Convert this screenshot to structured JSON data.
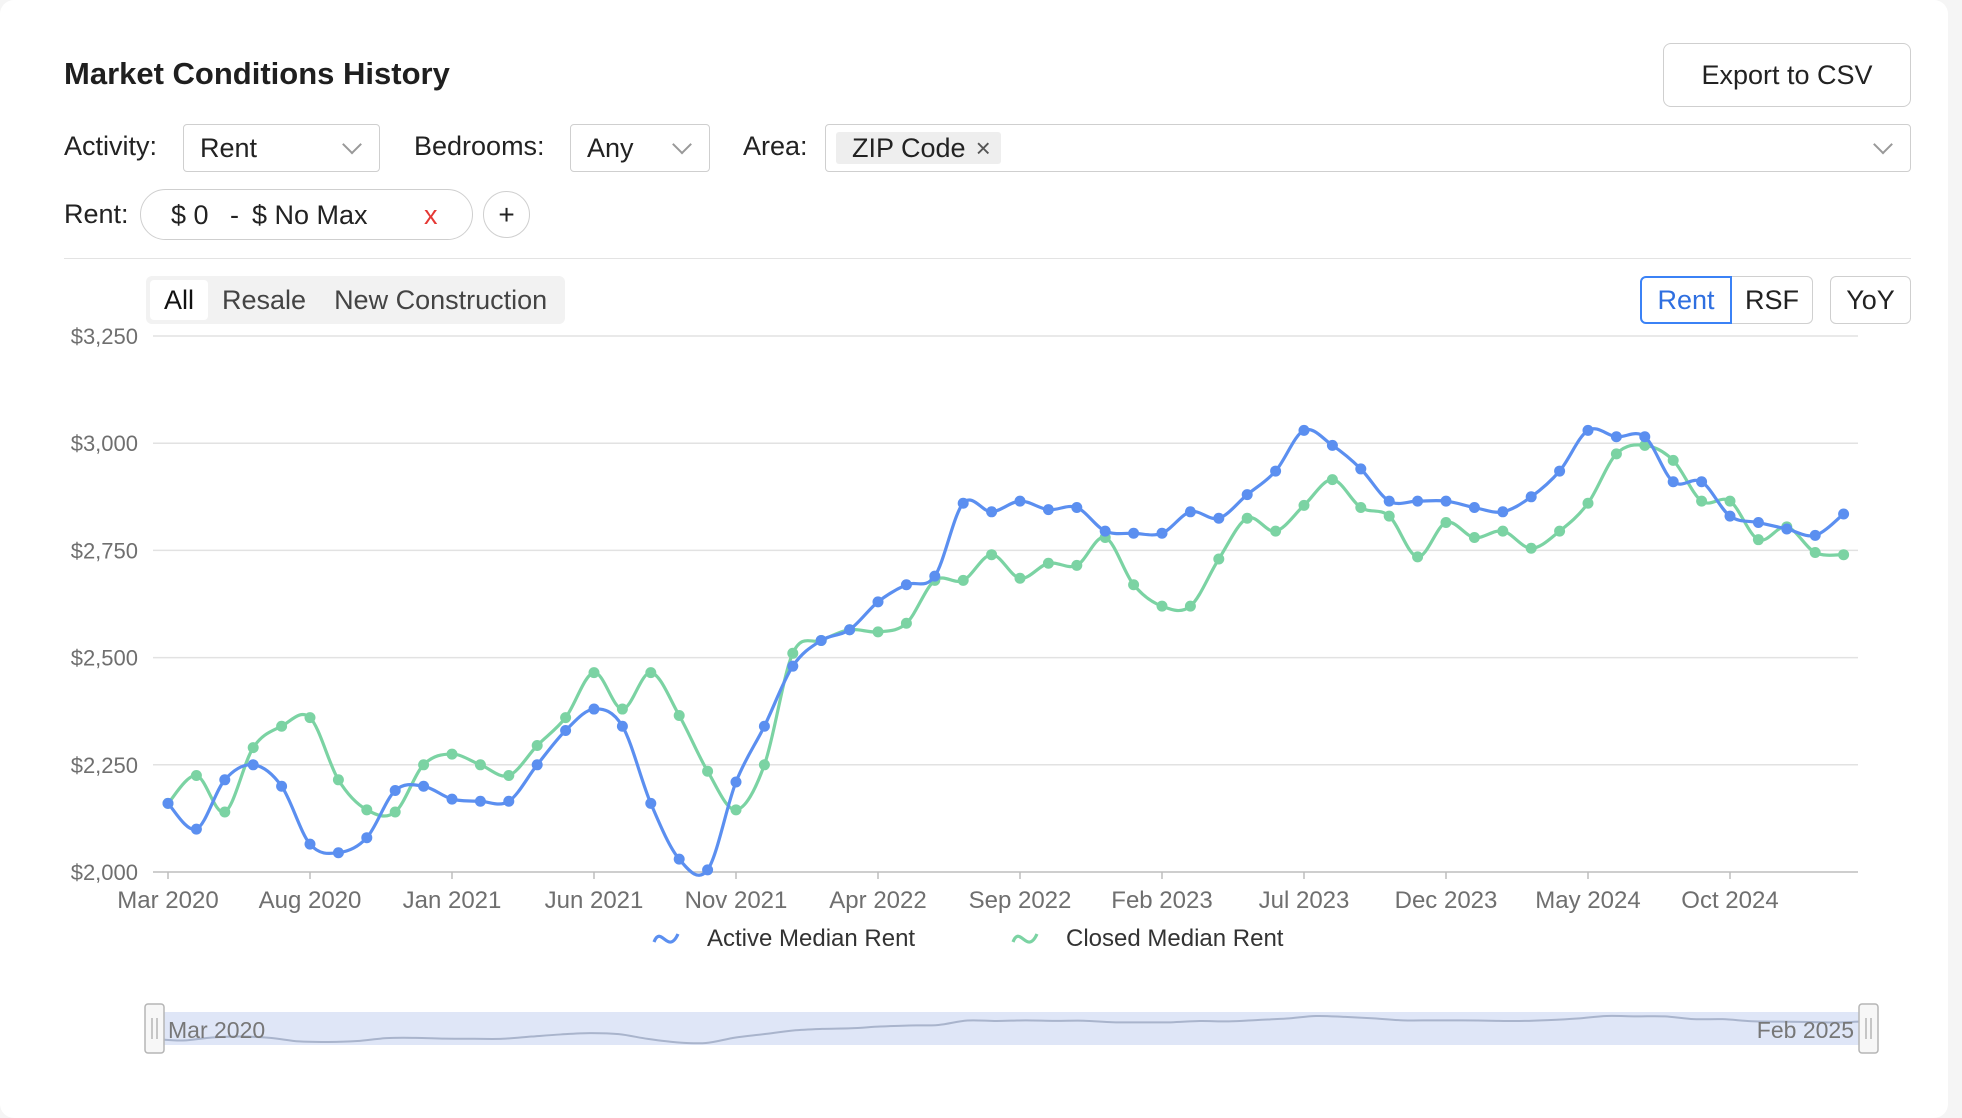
{
  "header": {
    "title": "Market Conditions History",
    "export_label": "Export to CSV"
  },
  "filters": {
    "activity_label": "Activity:",
    "activity_value": "Rent",
    "bedrooms_label": "Bedrooms:",
    "bedrooms_value": "Any",
    "area_label": "Area:",
    "area_tag": "ZIP Code",
    "tag_remove": "×",
    "rent_label": "Rent:",
    "rent_min": "$ 0",
    "rent_sep": "-",
    "rent_max": "$ No Max",
    "rent_clear": "x",
    "add_filter": "+"
  },
  "segments": [
    {
      "label": "All",
      "active": true
    },
    {
      "label": "Resale",
      "active": false
    },
    {
      "label": "New Construction",
      "active": false
    }
  ],
  "metric_toggle": [
    {
      "label": "Rent",
      "active": true
    },
    {
      "label": "RSF",
      "active": false
    }
  ],
  "yoy_label": "YoY",
  "colors": {
    "active": "#5b8ff0",
    "closed": "#7bd3a3",
    "grid": "#e2e2e2",
    "axis": "#6f6f6f"
  },
  "chart_data": {
    "type": "line",
    "title": "",
    "xlabel": "",
    "ylabel": "",
    "ylim": [
      2000,
      3250
    ],
    "yticks": [
      2000,
      2250,
      2500,
      2750,
      3000,
      3250
    ],
    "ytick_labels": [
      "$2,000",
      "$2,250",
      "$2,500",
      "$2,750",
      "$3,000",
      "$3,250"
    ],
    "x_tick_labels": [
      {
        "label": "Mar 2020",
        "index": 0
      },
      {
        "label": "Aug 2020",
        "index": 5
      },
      {
        "label": "Jan 2021",
        "index": 10
      },
      {
        "label": "Jun 2021",
        "index": 15
      },
      {
        "label": "Nov 2021",
        "index": 20
      },
      {
        "label": "Apr 2022",
        "index": 25
      },
      {
        "label": "Sep 2022",
        "index": 30
      },
      {
        "label": "Feb 2023",
        "index": 35
      },
      {
        "label": "Jul 2023",
        "index": 40
      },
      {
        "label": "Dec 2023",
        "index": 45
      },
      {
        "label": "May 2024",
        "index": 50
      },
      {
        "label": "Oct 2024",
        "index": 55
      }
    ],
    "x_start": "Mar 2020",
    "x_end": "Feb 2025",
    "legend_position": "bottom",
    "grid": true,
    "series": [
      {
        "name": "Active Median Rent",
        "values": [
          2160,
          2100,
          2215,
          2250,
          2200,
          2065,
          2045,
          2080,
          2190,
          2200,
          2170,
          2165,
          2165,
          2250,
          2330,
          2380,
          2340,
          2160,
          2030,
          2005,
          2210,
          2340,
          2480,
          2540,
          2565,
          2630,
          2670,
          2690,
          2860,
          2840,
          2865,
          2845,
          2850,
          2795,
          2790,
          2790,
          2840,
          2825,
          2880,
          2935,
          3030,
          2995,
          2940,
          2865,
          2865,
          2865,
          2850,
          2840,
          2875,
          2935,
          3030,
          3015,
          3015,
          2910,
          2910,
          2830,
          2815,
          2800,
          2785,
          2835
        ]
      },
      {
        "name": "Closed Median Rent",
        "values": [
          2160,
          2225,
          2140,
          2290,
          2340,
          2360,
          2215,
          2145,
          2140,
          2250,
          2275,
          2250,
          2225,
          2295,
          2360,
          2465,
          2380,
          2465,
          2365,
          2235,
          2145,
          2250,
          2510,
          2540,
          2565,
          2560,
          2580,
          2680,
          2680,
          2740,
          2685,
          2720,
          2715,
          2780,
          2670,
          2620,
          2620,
          2730,
          2825,
          2795,
          2855,
          2915,
          2850,
          2830,
          2735,
          2815,
          2780,
          2795,
          2755,
          2795,
          2860,
          2975,
          2995,
          2960,
          2865,
          2865,
          2775,
          2805,
          2745,
          2740
        ]
      }
    ]
  },
  "navigator": {
    "start_label": "Mar 2020",
    "end_label": "Feb 2025"
  }
}
